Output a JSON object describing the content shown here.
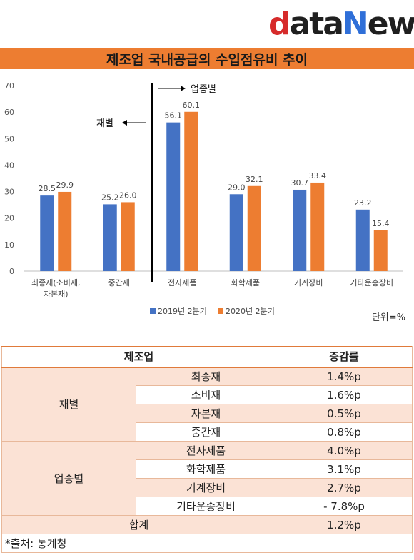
{
  "logo": {
    "d": "d",
    "ata": "ata",
    "n": "N",
    "ews": "ews"
  },
  "title": "제조업 국내공급의 수입점유비 추이",
  "chart_data": {
    "type": "bar",
    "categories": [
      "최종재(소비재,\n자본재)",
      "중간재",
      "전자제품",
      "화학제품",
      "기계장비",
      "기타운송장비"
    ],
    "series": [
      {
        "name": "2019년 2분기",
        "color": "#4472c4",
        "values": [
          28.5,
          25.2,
          56.1,
          29.0,
          30.7,
          23.2
        ]
      },
      {
        "name": "2020년 2분기",
        "color": "#ed7d31",
        "values": [
          29.9,
          26.0,
          60.1,
          32.1,
          33.4,
          15.4
        ]
      }
    ],
    "ylim": [
      0,
      70
    ],
    "yticks": [
      0,
      10,
      20,
      30,
      40,
      50,
      60,
      70
    ],
    "grid": false,
    "legend": "bottom",
    "annotations": {
      "left": "재별",
      "right": "업종별"
    },
    "unit": "단위=%"
  },
  "table": {
    "header": {
      "col1": "제조업",
      "col2": "증감률"
    },
    "groups": [
      {
        "label": "재별",
        "rows": [
          {
            "name": "최종재",
            "value": "1.4%p"
          },
          {
            "name": "소비재",
            "value": "1.6%p"
          },
          {
            "name": "자본재",
            "value": "0.5%p"
          },
          {
            "name": "중간재",
            "value": "0.8%p"
          }
        ]
      },
      {
        "label": "업종별",
        "rows": [
          {
            "name": "전자제품",
            "value": "4.0%p"
          },
          {
            "name": "화학제품",
            "value": "3.1%p"
          },
          {
            "name": "기계장비",
            "value": "2.7%p"
          },
          {
            "name": "기타운송장비",
            "value": "- 7.8%p"
          }
        ]
      }
    ],
    "total": {
      "label": "합계",
      "value": "1.2%p"
    },
    "source": "*출처: 통계청"
  }
}
